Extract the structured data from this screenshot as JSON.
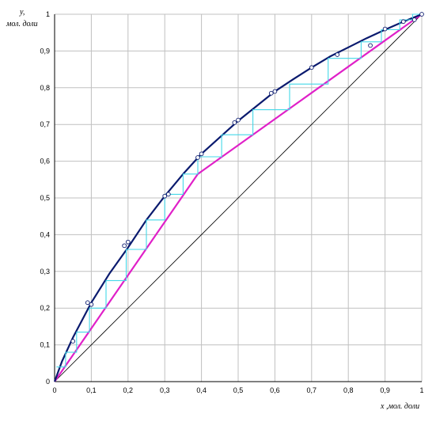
{
  "chart_data": {
    "type": "line",
    "ylabel_symbol": "y,",
    "ylabel_units": "мол. доли",
    "xlabel": "x ,мол. доли",
    "xlim": [
      0,
      1
    ],
    "ylim": [
      0,
      1
    ],
    "grid": true,
    "x_ticks": [
      "0",
      "0,1",
      "0,2",
      "0,3",
      "0,4",
      "0,5",
      "0,6",
      "0,7",
      "0,8",
      "0,9",
      "1"
    ],
    "y_ticks": [
      "0",
      "0,1",
      "0,2",
      "0,3",
      "0,4",
      "0,5",
      "0,6",
      "0,7",
      "0,8",
      "0,9",
      "1"
    ],
    "colors": {
      "equilibrium": "#0a1a6e",
      "operating": "#e020c8",
      "steps": "#44d8e8",
      "diagonal": "#000000",
      "grid": "#c0c0c0",
      "points": "#0a1a6e"
    },
    "series": [
      {
        "key": "equilibrium",
        "x": [
          0,
          0.02,
          0.05,
          0.1,
          0.15,
          0.2,
          0.25,
          0.3,
          0.35,
          0.4,
          0.45,
          0.5,
          0.55,
          0.6,
          0.65,
          0.7,
          0.75,
          0.8,
          0.85,
          0.9,
          0.95,
          1.0
        ],
        "y": [
          0,
          0.055,
          0.12,
          0.215,
          0.295,
          0.365,
          0.44,
          0.505,
          0.565,
          0.62,
          0.665,
          0.71,
          0.75,
          0.79,
          0.823,
          0.855,
          0.885,
          0.91,
          0.935,
          0.958,
          0.98,
          1.0
        ]
      },
      {
        "key": "operating",
        "x": [
          0,
          0.39,
          1.0
        ],
        "y": [
          0,
          0.565,
          1.0
        ]
      },
      {
        "key": "diagonal",
        "x": [
          0,
          1
        ],
        "y": [
          0,
          1
        ]
      }
    ],
    "experimental_points": {
      "x": [
        0.05,
        0.09,
        0.1,
        0.19,
        0.2,
        0.3,
        0.31,
        0.39,
        0.4,
        0.49,
        0.5,
        0.59,
        0.6,
        0.7,
        0.77,
        0.86,
        0.9,
        0.95,
        0.98,
        1.0
      ],
      "y": [
        0.11,
        0.215,
        0.21,
        0.37,
        0.38,
        0.505,
        0.51,
        0.61,
        0.62,
        0.705,
        0.712,
        0.785,
        0.79,
        0.855,
        0.89,
        0.915,
        0.96,
        0.98,
        0.985,
        1.0
      ]
    },
    "steps": {
      "vertices_x": [
        1.0,
        0.975,
        0.975,
        0.94,
        0.94,
        0.89,
        0.89,
        0.835,
        0.835,
        0.745,
        0.745,
        0.64,
        0.64,
        0.54,
        0.54,
        0.455,
        0.455,
        0.39,
        0.39,
        0.35,
        0.35,
        0.3,
        0.3,
        0.25,
        0.25,
        0.195,
        0.195,
        0.14,
        0.14,
        0.095,
        0.095,
        0.06,
        0.06,
        0.03,
        0.03,
        0.005
      ],
      "vertices_y": [
        1.0,
        1.0,
        0.985,
        0.985,
        0.958,
        0.958,
        0.925,
        0.925,
        0.88,
        0.88,
        0.81,
        0.81,
        0.74,
        0.74,
        0.672,
        0.672,
        0.612,
        0.612,
        0.565,
        0.565,
        0.51,
        0.51,
        0.44,
        0.44,
        0.36,
        0.36,
        0.275,
        0.275,
        0.2,
        0.2,
        0.135,
        0.135,
        0.08,
        0.08,
        0.04,
        0.04
      ]
    }
  }
}
